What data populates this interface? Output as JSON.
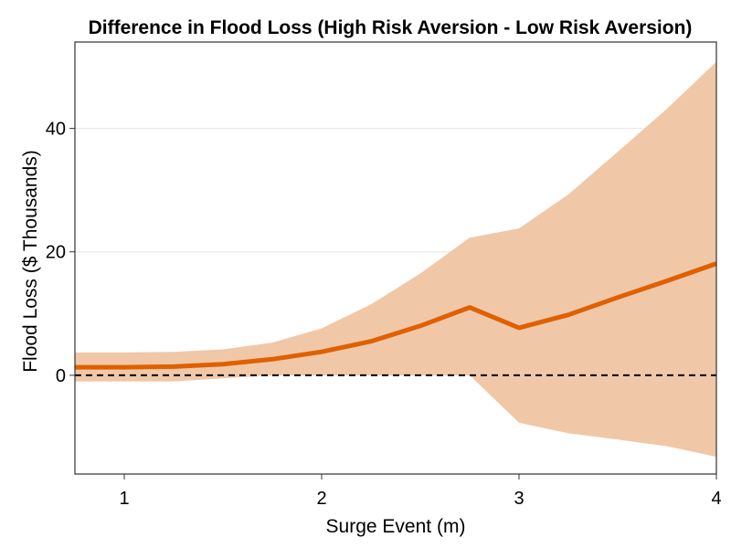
{
  "chart_data": {
    "type": "line",
    "title": "Difference in Flood Loss (High Risk Aversion - Low Risk Aversion)",
    "xlabel": "Surge Event (m)",
    "ylabel": "Flood Loss ($ Thousands)",
    "xlim": [
      0.75,
      4.0
    ],
    "ylim": [
      -16,
      54
    ],
    "xticks": [
      1,
      2,
      3,
      4
    ],
    "yticks": [
      0,
      20,
      40
    ],
    "grid": true,
    "legend": "none",
    "colors": {
      "line": "#e06000",
      "band": "#f0c8a8",
      "zero_line": "#000000",
      "grid": "#e6e6e6",
      "frame": "#333333"
    },
    "x": [
      0.75,
      1.0,
      1.25,
      1.5,
      1.75,
      2.0,
      2.25,
      2.5,
      2.75,
      3.0,
      3.25,
      3.5,
      3.75,
      4.0
    ],
    "series": [
      {
        "values": [
          1.3,
          1.3,
          1.4,
          1.8,
          2.6,
          3.8,
          5.5,
          8.0,
          11.0,
          7.7,
          9.8,
          12.6,
          15.3,
          18.1
        ]
      }
    ],
    "band": {
      "upper": [
        3.7,
        3.7,
        3.8,
        4.2,
        5.3,
        7.6,
        11.5,
        16.5,
        22.3,
        23.8,
        29.3,
        36.2,
        43.2,
        50.8
      ],
      "lower": [
        -1.0,
        -1.0,
        -1.0,
        -0.5,
        0.0,
        0.0,
        0.0,
        0.0,
        0.0,
        -7.7,
        -9.4,
        -10.4,
        -11.5,
        -13.2
      ]
    },
    "reference_line": {
      "y": 0,
      "style": "dashed"
    }
  }
}
